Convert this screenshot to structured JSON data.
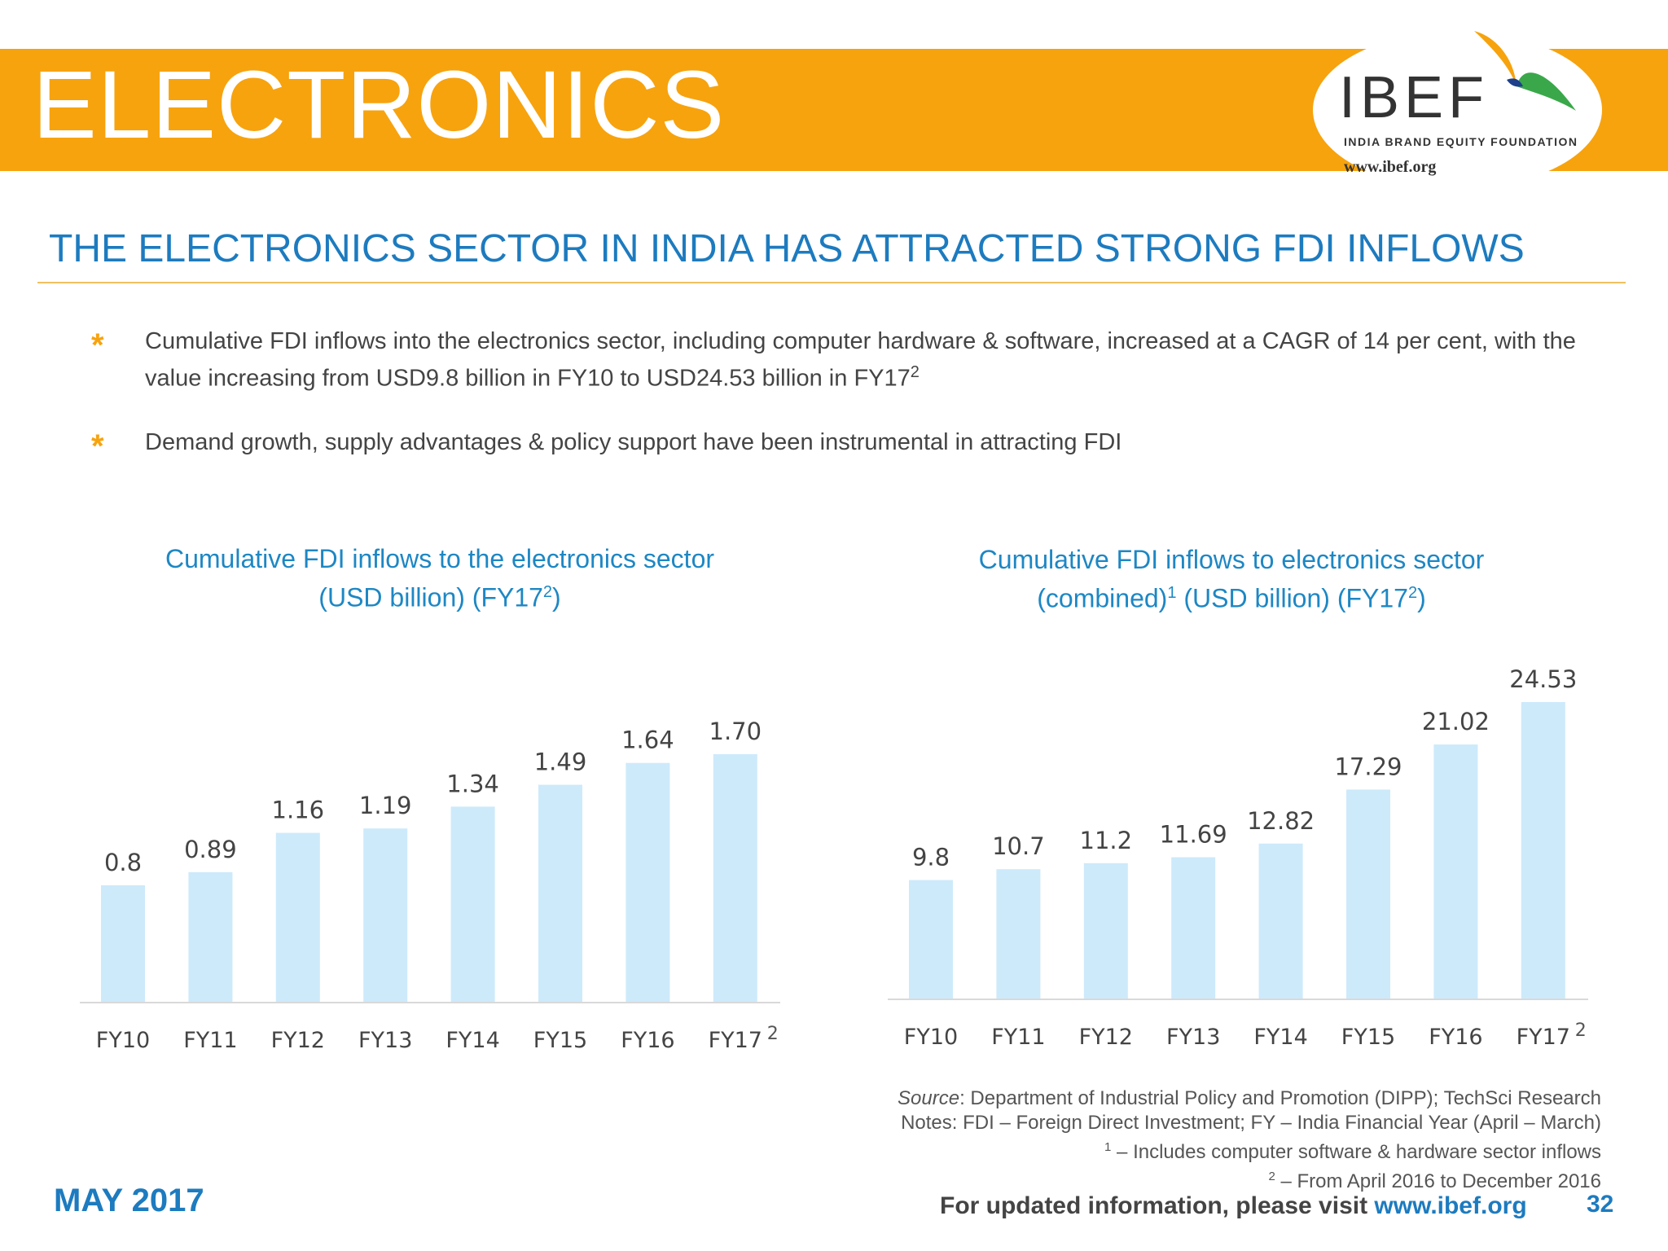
{
  "header": {
    "title": "ELECTRONICS",
    "logo_name": "IBEF",
    "logo_tagline": "INDIA BRAND EQUITY FOUNDATION",
    "logo_url": "www.ibef.org"
  },
  "headline": "THE ELECTRONICS SECTOR IN INDIA HAS ATTRACTED STRONG FDI INFLOWS",
  "bullets": [
    {
      "text": "Cumulative FDI inflows into the electronics sector, including computer hardware & software, increased at a CAGR of 14 per cent, with the value increasing from USD9.8 billion in FY10 to USD24.53 billion in FY17",
      "sup": "2"
    },
    {
      "text": "Demand growth, supply advantages & policy support have been instrumental in attracting FDI"
    }
  ],
  "chart_data": [
    {
      "type": "bar",
      "title": "Cumulative FDI inflows to the electronics sector",
      "title_line2": "(USD billion) (FY17",
      "title_sup": "2",
      "title_end": ")",
      "categories": [
        "FY10",
        "FY11",
        "FY12",
        "FY13",
        "FY14",
        "FY15",
        "FY16",
        "FY17"
      ],
      "last_category_sup": "2",
      "values": [
        0.8,
        0.89,
        1.16,
        1.19,
        1.34,
        1.49,
        1.64,
        1.7
      ],
      "labels": [
        "0.8",
        "0.89",
        "1.16",
        "1.19",
        "1.34",
        "1.49",
        "1.64",
        "1.70"
      ],
      "ylim": [
        0,
        1.7
      ],
      "bar_color": "#cdeafb",
      "grid": false
    },
    {
      "type": "bar",
      "title": "Cumulative FDI inflows to electronics sector",
      "title_line2_pre": "(combined)",
      "title_sup1": "1",
      "title_line2": " (USD billion) (FY17",
      "title_sup": "2",
      "title_end": ")",
      "categories": [
        "FY10",
        "FY11",
        "FY12",
        "FY13",
        "FY14",
        "FY15",
        "FY16",
        "FY17"
      ],
      "last_category_sup": "2",
      "values": [
        9.8,
        10.7,
        11.2,
        11.69,
        12.82,
        17.29,
        21.02,
        24.53
      ],
      "labels": [
        "9.8",
        "10.7",
        "11.2",
        "11.69",
        "12.82",
        "17.29",
        "21.02",
        "24.53"
      ],
      "ylim": [
        0,
        24.53
      ],
      "bar_color": "#cdeafb",
      "grid": false
    }
  ],
  "source": {
    "label": "Source",
    "text": ": Department of Industrial Policy and Promotion (DIPP); TechSci Research",
    "notes": "Notes: FDI – Foreign Direct Investment; FY – India Financial Year (April – March)",
    "note1_sup": "1",
    "note1": " – Includes computer software & hardware sector inflows",
    "note2_sup": "2",
    "note2": " – From April 2016 to December 2016"
  },
  "footer": {
    "date": "MAY 2017",
    "visit_text": "For updated information, please visit ",
    "visit_url": "www.ibef.org",
    "page": "32"
  }
}
